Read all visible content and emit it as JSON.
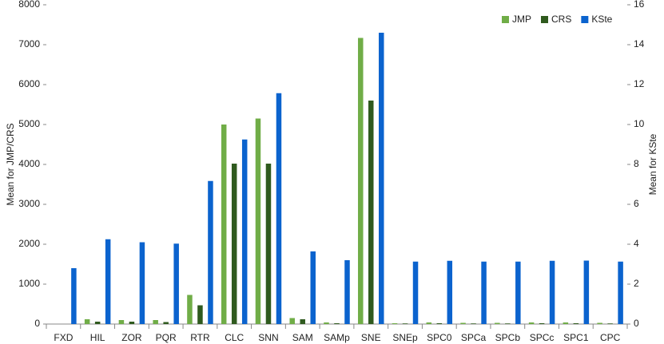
{
  "chart_data": {
    "type": "bar",
    "categories": [
      "FXD",
      "HIL",
      "ZOR",
      "PQR",
      "RTR",
      "CLC",
      "SNN",
      "SAM",
      "SAMp",
      "SNE",
      "SNEp",
      "SPC0",
      "SPCa",
      "SPCb",
      "SPCc",
      "SPC1",
      "CPC"
    ],
    "series": [
      {
        "name": "JMP",
        "color": "#70ad47",
        "values": [
          0,
          120,
          100,
          100,
          730,
          5000,
          5150,
          150,
          40,
          7170,
          20,
          40,
          30,
          30,
          40,
          40,
          30
        ]
      },
      {
        "name": "CRS",
        "color": "#2f5a1e",
        "values": [
          0,
          60,
          60,
          50,
          470,
          4020,
          4020,
          120,
          20,
          5600,
          15,
          20,
          15,
          15,
          20,
          20,
          15
        ]
      },
      {
        "name": "KSte",
        "color": "#0b63ce",
        "axis": "y2",
        "values": [
          2.8,
          4.25,
          4.1,
          4.03,
          7.17,
          9.25,
          11.57,
          3.64,
          3.2,
          14.6,
          3.13,
          3.17,
          3.13,
          3.13,
          3.17,
          3.18,
          3.13
        ]
      }
    ],
    "ylabel": "Mean for JMP/CRS",
    "y2label": "Mean for KSte",
    "ylim": [
      0,
      8000
    ],
    "yticks": [
      0,
      1000,
      2000,
      3000,
      4000,
      5000,
      6000,
      7000,
      8000
    ],
    "y2lim": [
      0,
      16
    ],
    "y2ticks": [
      0,
      2,
      4,
      6,
      8,
      10,
      12,
      14,
      16
    ],
    "legend": "upper right"
  }
}
